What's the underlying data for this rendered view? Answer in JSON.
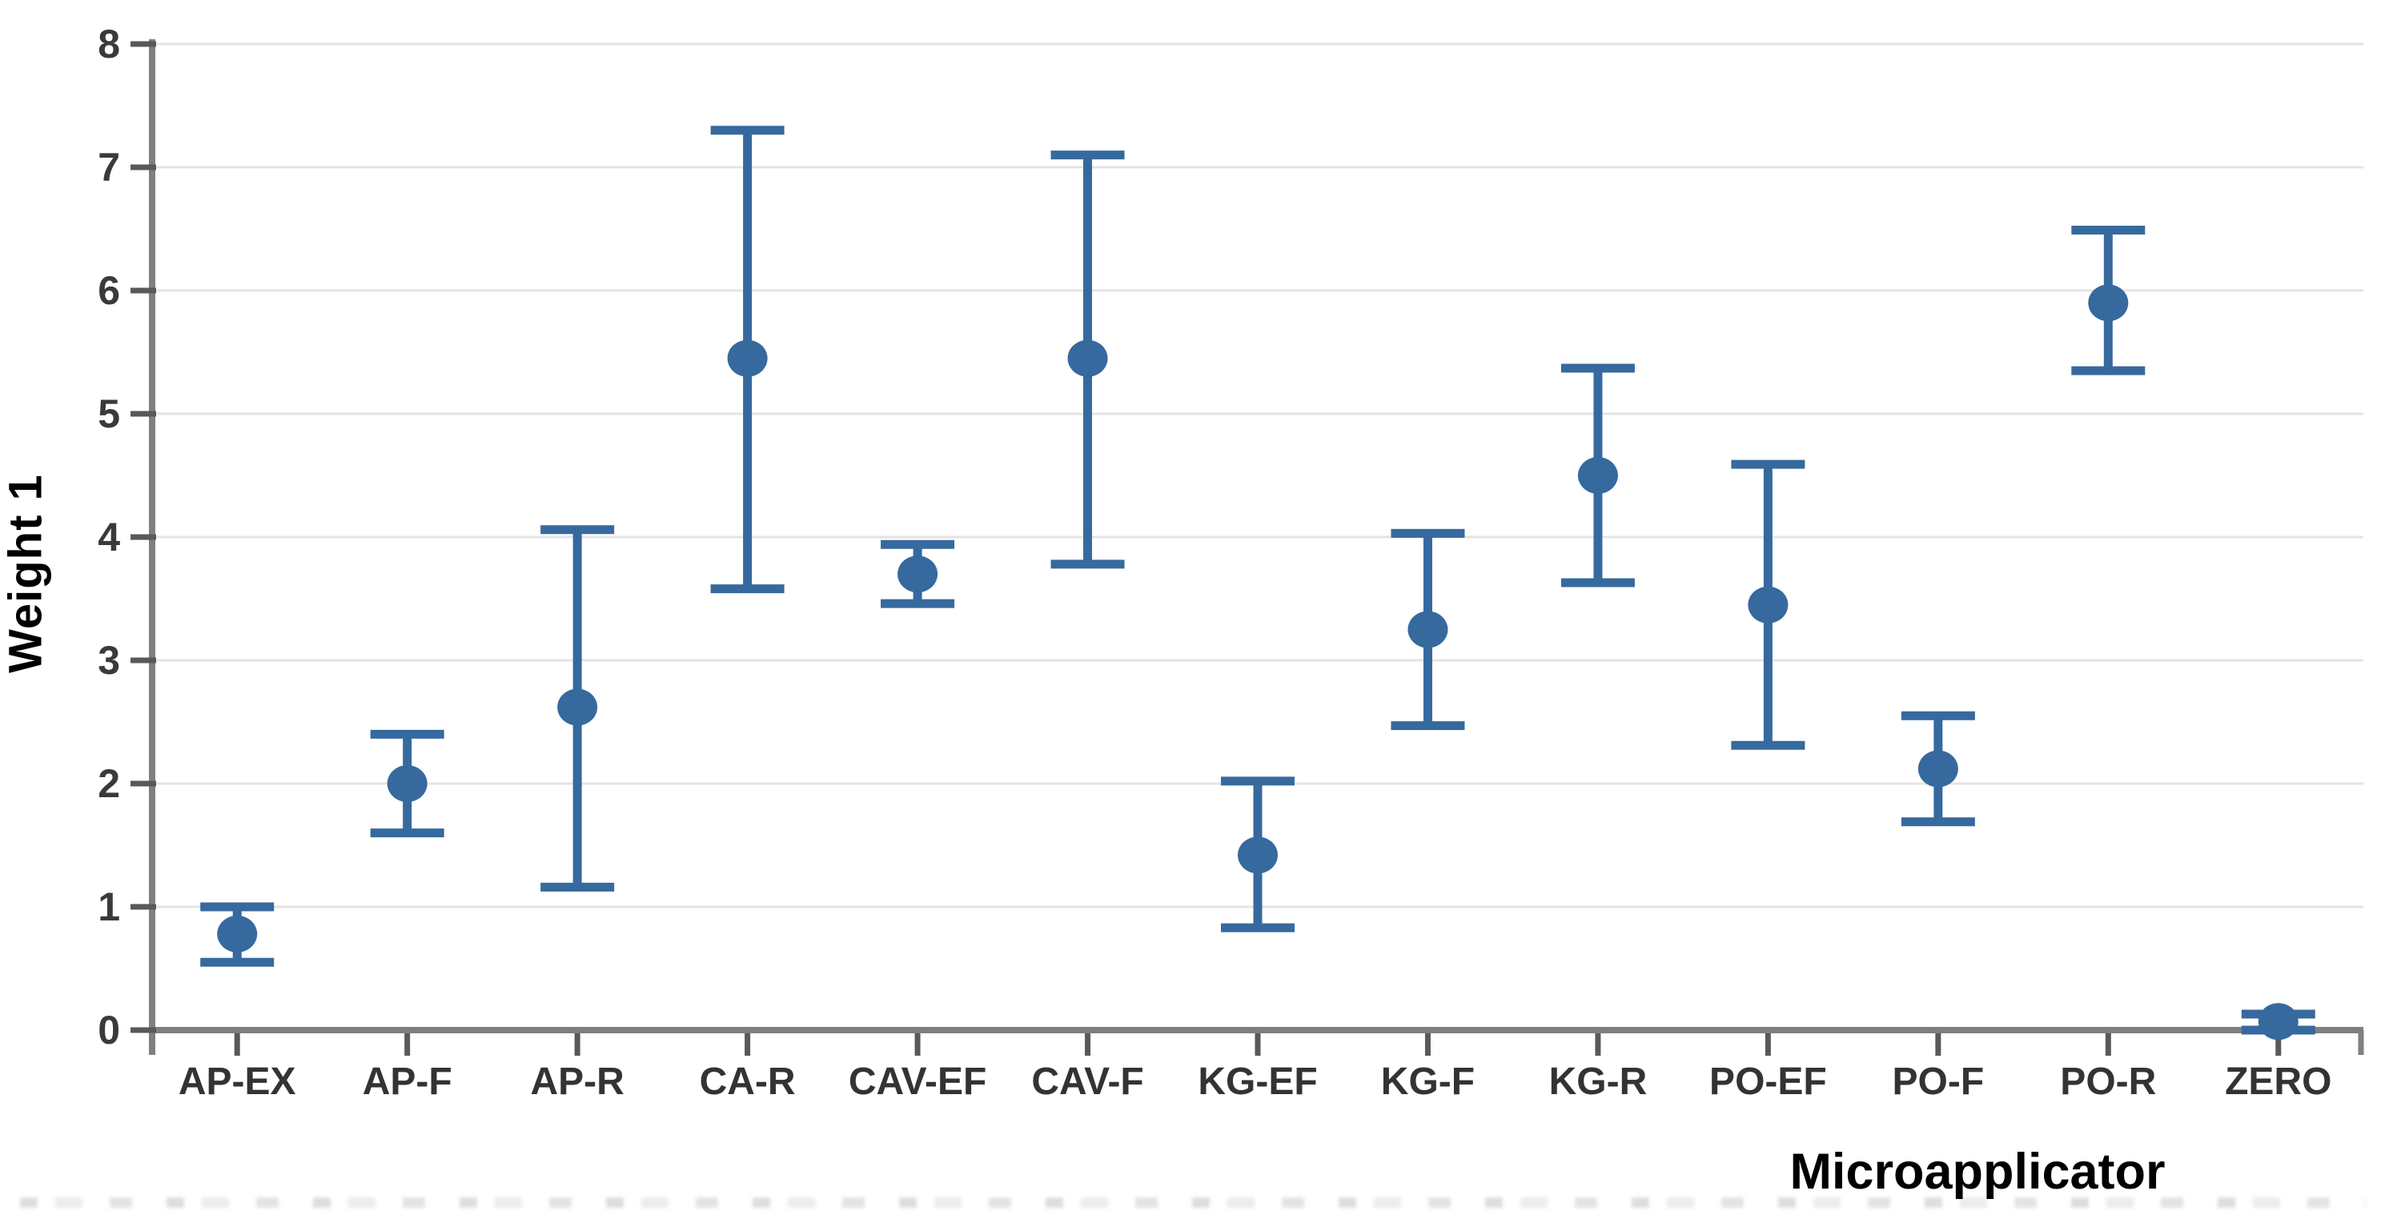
{
  "figure": {
    "background": "#ffffff",
    "point_color": "#36699e",
    "axis_color": "#7f7f7f",
    "tick_color": "#595959",
    "grid_color": "#e4e4e4",
    "tick_label_color": "#3a3a3a",
    "axis_title_color": "#000000"
  },
  "chart_data": {
    "type": "scatter",
    "subtype": "point-estimates-with-error-bars",
    "title": "",
    "xlabel": "Microapplicator",
    "ylabel": "Weight 1",
    "ylim": [
      0,
      8
    ],
    "yticks": [
      0,
      1,
      2,
      3,
      4,
      5,
      6,
      7,
      8
    ],
    "grid": true,
    "legend": false,
    "categories": [
      "AP-EX",
      "AP-F",
      "AP-R",
      "CA-R",
      "CAV-EF",
      "CAV-F",
      "KG-EF",
      "KG-F",
      "KG-R",
      "PO-EF",
      "PO-F",
      "PO-R",
      "ZERO"
    ],
    "series": [
      {
        "name": "Weight 1",
        "marker": "circle",
        "points": [
          {
            "category": "AP-EX",
            "mean": 0.78,
            "lower": 0.55,
            "upper": 1.0
          },
          {
            "category": "AP-F",
            "mean": 2.0,
            "lower": 1.6,
            "upper": 2.4
          },
          {
            "category": "AP-R",
            "mean": 2.62,
            "lower": 1.16,
            "upper": 4.06
          },
          {
            "category": "CA-R",
            "mean": 5.45,
            "lower": 3.58,
            "upper": 7.3
          },
          {
            "category": "CAV-EF",
            "mean": 3.7,
            "lower": 3.46,
            "upper": 3.94
          },
          {
            "category": "CAV-F",
            "mean": 5.45,
            "lower": 3.78,
            "upper": 7.1
          },
          {
            "category": "KG-EF",
            "mean": 1.42,
            "lower": 0.83,
            "upper": 2.02
          },
          {
            "category": "KG-F",
            "mean": 3.25,
            "lower": 2.47,
            "upper": 4.03
          },
          {
            "category": "KG-R",
            "mean": 4.5,
            "lower": 3.63,
            "upper": 5.37
          },
          {
            "category": "PO-EF",
            "mean": 3.45,
            "lower": 2.31,
            "upper": 4.59
          },
          {
            "category": "PO-F",
            "mean": 2.12,
            "lower": 1.69,
            "upper": 2.55
          },
          {
            "category": "PO-R",
            "mean": 5.9,
            "lower": 5.35,
            "upper": 6.49
          },
          {
            "category": "ZERO",
            "mean": 0.07,
            "lower": 0.0,
            "upper": 0.13
          }
        ]
      }
    ]
  }
}
